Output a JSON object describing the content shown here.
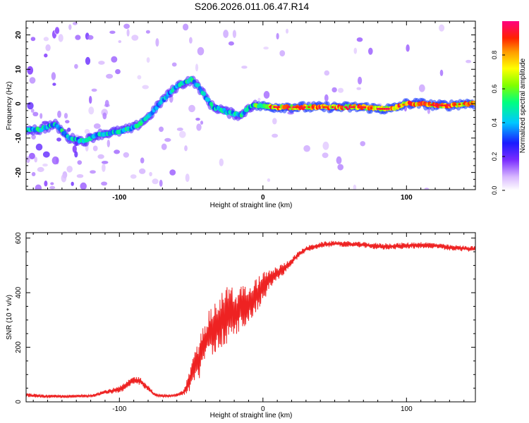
{
  "title": "S206.2026.011.06.47.R14",
  "chart_data": [
    {
      "type": "heatmap",
      "title": "S206.2026.011.06.47.R14",
      "xlabel": "Height of straight line (km)",
      "ylabel": "Frequency (Hz)",
      "xlim": [
        -165,
        148
      ],
      "ylim": [
        -25,
        24
      ],
      "x_ticks": [
        -100,
        0,
        100
      ],
      "y_ticks": [
        -20,
        -10,
        0,
        10,
        20
      ],
      "colorbar": {
        "label": "Normalized spectral amplitude",
        "range": [
          0,
          1
        ],
        "ticks": [
          0.0,
          0.2,
          0.4,
          0.6,
          0.8
        ],
        "tick_labels": [
          "0.0",
          "0.2",
          "0.4",
          "0.6",
          "0.8"
        ]
      },
      "ridge": {
        "description_points_x_km": [
          -165,
          -155,
          -145,
          -135,
          -125,
          -115,
          -100,
          -90,
          -80,
          -70,
          -60,
          -50,
          -45,
          -40,
          -35,
          -30,
          -25,
          -20,
          -15,
          -10,
          -5,
          0,
          10,
          30,
          50,
          70,
          80,
          90,
          100,
          110,
          120,
          130,
          140,
          148
        ],
        "frequency_hz": [
          -7.5,
          -7.5,
          -6,
          -10,
          -11,
          -9,
          -8,
          -7,
          -4,
          1,
          5,
          7,
          5,
          2,
          -1,
          -1.5,
          -2.5,
          -3,
          -3.5,
          -1,
          -0.5,
          -0.8,
          -1,
          -1,
          -1,
          -1,
          -1.5,
          -1.5,
          0,
          0,
          -0.5,
          -0.5,
          0,
          0
        ]
      }
    },
    {
      "type": "line",
      "xlabel": "Height of straight line (km)",
      "ylabel": "SNR (10 * v/v)",
      "xlim": [
        -165,
        148
      ],
      "ylim": [
        0,
        620
      ],
      "x_ticks": [
        -100,
        0,
        100
      ],
      "y_ticks": [
        0,
        200,
        400,
        600
      ],
      "series": [
        {
          "name": "SNR",
          "color": "#ee2222",
          "x": [
            -165,
            -150,
            -135,
            -120,
            -110,
            -100,
            -95,
            -90,
            -85,
            -80,
            -75,
            -70,
            -65,
            -60,
            -55,
            -50,
            -45,
            -40,
            -35,
            -30,
            -25,
            -20,
            -15,
            -10,
            -5,
            0,
            5,
            10,
            15,
            20,
            25,
            30,
            40,
            50,
            60,
            70,
            80,
            90,
            100,
            110,
            120,
            130,
            140,
            148
          ],
          "y": [
            25,
            20,
            20,
            22,
            35,
            45,
            60,
            80,
            75,
            50,
            25,
            22,
            22,
            25,
            35,
            90,
            150,
            220,
            270,
            290,
            320,
            330,
            340,
            360,
            390,
            420,
            450,
            470,
            490,
            515,
            540,
            560,
            575,
            580,
            578,
            575,
            570,
            570,
            572,
            575,
            572,
            565,
            562,
            560
          ],
          "noise_amplitude": [
            12,
            10,
            10,
            10,
            15,
            20,
            25,
            25,
            25,
            20,
            10,
            8,
            8,
            10,
            18,
            80,
            130,
            140,
            160,
            170,
            180,
            150,
            140,
            120,
            110,
            90,
            60,
            45,
            35,
            25,
            20,
            18,
            18,
            18,
            18,
            18,
            20,
            20,
            20,
            20,
            18,
            18,
            18,
            18
          ]
        }
      ]
    }
  ]
}
